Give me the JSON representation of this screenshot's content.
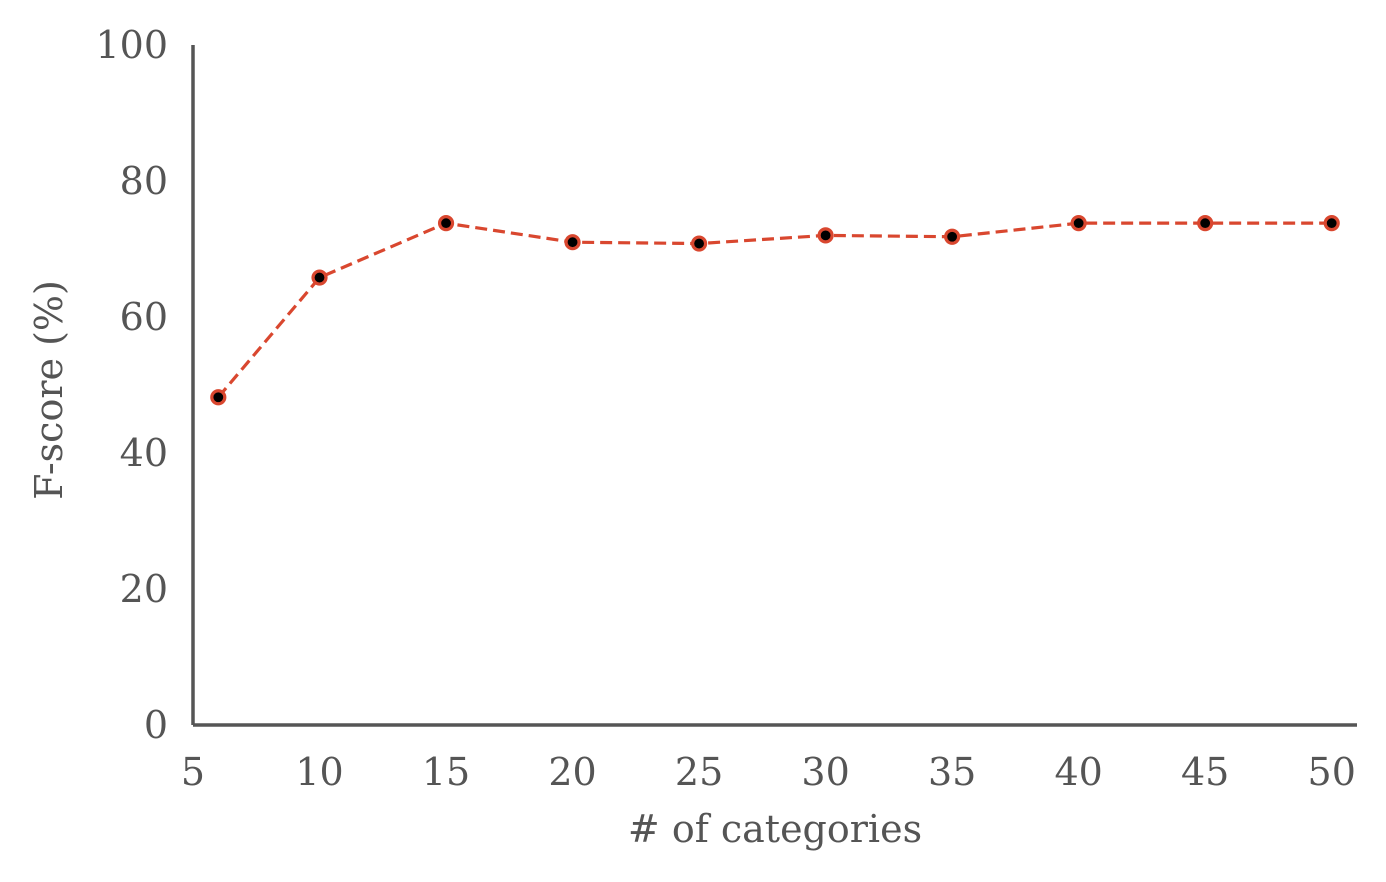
{
  "chart_data": {
    "type": "line",
    "title": "",
    "xlabel": "# of categories",
    "ylabel": "F-score (%)",
    "xlim": [
      5,
      51
    ],
    "ylim": [
      0,
      100
    ],
    "xticks": [
      5,
      10,
      15,
      20,
      25,
      30,
      35,
      40,
      45,
      50
    ],
    "yticks": [
      0,
      20,
      40,
      60,
      80,
      100
    ],
    "grid": false,
    "series": [
      {
        "x": [
          6,
          10,
          15,
          20,
          25,
          30,
          35,
          40,
          45,
          50
        ],
        "values": [
          48.2,
          65.8,
          73.8,
          71.0,
          70.8,
          72.0,
          71.8,
          73.8,
          73.8,
          73.8
        ],
        "line_color": "#d9472f",
        "line_style": "dashed",
        "marker_face": "#000000",
        "marker_edge": "#d9472f"
      }
    ],
    "axis_color": "#555555"
  }
}
